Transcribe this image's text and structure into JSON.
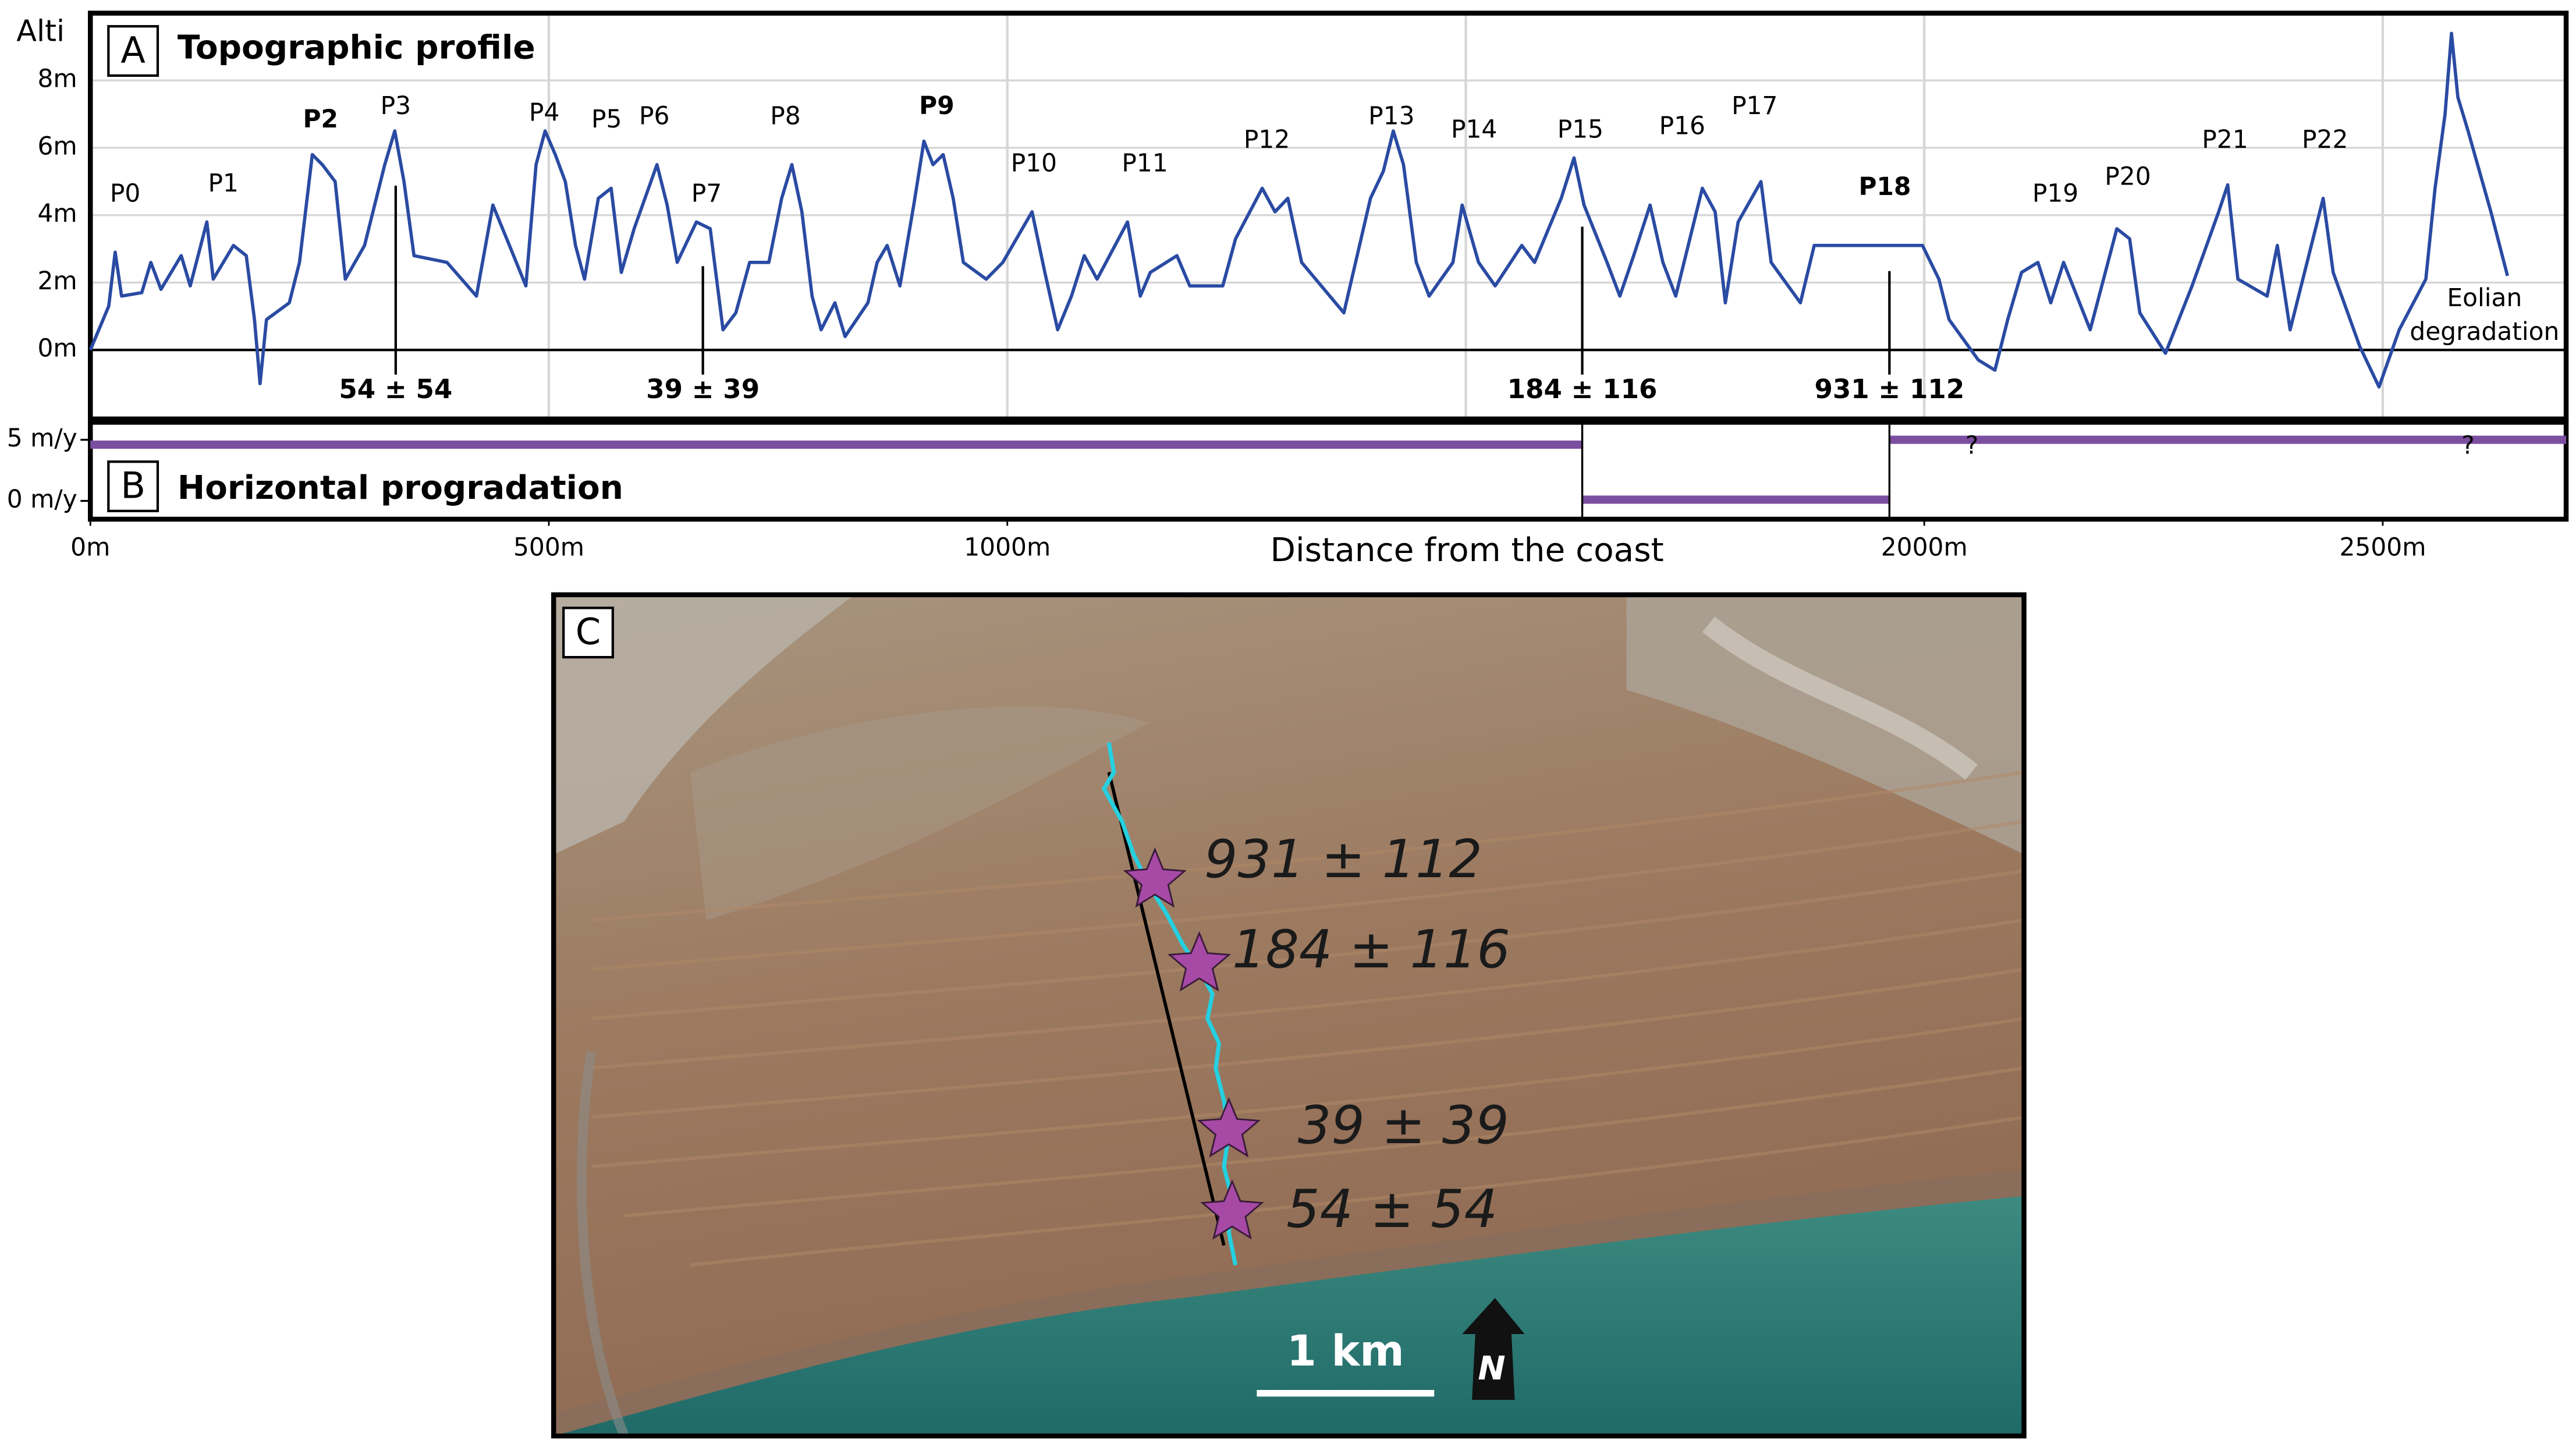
{
  "chart_data": [
    {
      "type": "line",
      "panel": "A",
      "title": "Topographic profile",
      "ylabel": "Alti",
      "xlim": [
        0,
        2700
      ],
      "ylim": [
        -2,
        9.9
      ],
      "yticks": [
        {
          "value": 0,
          "label": "0m"
        },
        {
          "value": 2,
          "label": "2m"
        },
        {
          "value": 4,
          "label": "4m"
        },
        {
          "value": 6,
          "label": "6m"
        },
        {
          "value": 8,
          "label": "8m"
        }
      ],
      "xgrid": [
        500,
        1000,
        1500,
        2000,
        2500
      ],
      "grid": true,
      "series": [
        {
          "color": "#2a4ba3",
          "x": [
            0,
            20,
            27,
            34,
            56,
            66,
            77,
            99,
            109,
            127,
            134,
            156,
            170,
            179,
            185,
            192,
            217,
            228,
            242,
            253,
            267,
            278,
            299,
            321,
            332,
            342,
            353,
            389,
            421,
            439,
            457,
            475,
            486,
            496,
            507,
            518,
            529,
            539,
            554,
            568,
            579,
            593,
            618,
            629,
            640,
            661,
            676,
            690,
            704,
            719,
            740,
            754,
            765,
            776,
            787,
            797,
            812,
            823,
            848,
            858,
            869,
            883,
            898,
            909,
            919,
            930,
            941,
            952,
            977,
            995,
            1027,
            1041,
            1055,
            1070,
            1084,
            1098,
            1131,
            1145,
            1156,
            1185,
            1199,
            1235,
            1249,
            1278,
            1292,
            1306,
            1321,
            1367,
            1396,
            1410,
            1421,
            1432,
            1446,
            1460,
            1486,
            1496,
            1514,
            1532,
            1561,
            1575,
            1604,
            1618,
            1629,
            1654,
            1668,
            1683,
            1701,
            1715,
            1729,
            1758,
            1772,
            1783,
            1797,
            1822,
            1833,
            1865,
            1880,
            1926,
            1962,
            1998,
            2016,
            2027,
            2059,
            2077,
            2091,
            2106,
            2124,
            2138,
            2152,
            2181,
            2210,
            2224,
            2235,
            2263,
            2292,
            2321,
            2331,
            2342,
            2374,
            2385,
            2399,
            2435,
            2446,
            2475,
            2496,
            2518,
            2547,
            2557,
            2568,
            2575,
            2582,
            2593,
            2618,
            2636
          ],
          "values": [
            0,
            1.3,
            2.9,
            1.6,
            1.7,
            2.6,
            1.8,
            2.8,
            1.9,
            3.8,
            2.1,
            3.1,
            2.8,
            0.9,
            -1,
            0.9,
            1.4,
            2.6,
            5.8,
            5.5,
            5,
            2.1,
            3.1,
            5.5,
            6.5,
            5,
            2.8,
            2.6,
            1.6,
            4.3,
            3.1,
            1.9,
            5.5,
            6.5,
            5.8,
            5,
            3.1,
            2.1,
            4.5,
            4.8,
            2.3,
            3.6,
            5.5,
            4.3,
            2.6,
            3.8,
            3.6,
            0.6,
            1.1,
            2.6,
            2.6,
            4.5,
            5.5,
            4.1,
            1.6,
            0.6,
            1.4,
            0.4,
            1.4,
            2.6,
            3.1,
            1.9,
            4.3,
            6.2,
            5.5,
            5.8,
            4.5,
            2.6,
            2.1,
            2.6,
            4.1,
            2.3,
            0.6,
            1.6,
            2.8,
            2.1,
            3.8,
            1.6,
            2.3,
            2.8,
            1.9,
            1.9,
            3.3,
            4.8,
            4.1,
            4.5,
            2.6,
            1.1,
            4.5,
            5.3,
            6.5,
            5.5,
            2.6,
            1.6,
            2.6,
            4.3,
            2.6,
            1.9,
            3.1,
            2.6,
            4.5,
            5.7,
            4.3,
            2.6,
            1.6,
            2.8,
            4.3,
            2.6,
            1.6,
            4.8,
            4.1,
            1.4,
            3.8,
            5,
            2.6,
            1.4,
            3.1,
            3.1,
            3.1,
            3.1,
            2.1,
            0.9,
            -0.3,
            -0.6,
            0.9,
            2.3,
            2.6,
            1.4,
            2.6,
            0.6,
            3.6,
            3.3,
            1.1,
            -0.1,
            1.9,
            4.1,
            4.9,
            2.1,
            1.6,
            3.1,
            0.6,
            4.5,
            2.3,
            0.1,
            -1.1,
            0.6,
            2.1,
            4.8,
            7,
            9.4,
            7.5,
            6.5,
            4.1,
            2.2
          ]
        }
      ],
      "annotations": [
        {
          "text": "P0",
          "x": 38,
          "y": 4.6
        },
        {
          "text": "P1",
          "x": 145,
          "y": 4.9
        },
        {
          "text": "P2",
          "x": 251,
          "y": 6.8,
          "bold": true
        },
        {
          "text": "P3",
          "x": 333,
          "y": 7.2
        },
        {
          "text": "P4",
          "x": 495,
          "y": 7
        },
        {
          "text": "P5",
          "x": 563,
          "y": 6.8
        },
        {
          "text": "P6",
          "x": 615,
          "y": 6.9
        },
        {
          "text": "P7",
          "x": 672,
          "y": 4.6
        },
        {
          "text": "P8",
          "x": 758,
          "y": 6.9
        },
        {
          "text": "P9",
          "x": 923,
          "y": 7.2,
          "bold": true
        },
        {
          "text": "P10",
          "x": 1029,
          "y": 5.5
        },
        {
          "text": "P11",
          "x": 1150,
          "y": 5.5
        },
        {
          "text": "P12",
          "x": 1283,
          "y": 6.2
        },
        {
          "text": "P13",
          "x": 1419,
          "y": 6.9
        },
        {
          "text": "P14",
          "x": 1509,
          "y": 6.5
        },
        {
          "text": "P15",
          "x": 1625,
          "y": 6.5
        },
        {
          "text": "P16",
          "x": 1736,
          "y": 6.6
        },
        {
          "text": "P17",
          "x": 1815,
          "y": 7.2
        },
        {
          "text": "P18",
          "x": 1957,
          "y": 4.8,
          "bold": true
        },
        {
          "text": "P19",
          "x": 2143,
          "y": 4.6
        },
        {
          "text": "P20",
          "x": 2222,
          "y": 5.1
        },
        {
          "text": "P21",
          "x": 2328,
          "y": 6.2
        },
        {
          "text": "P22",
          "x": 2437,
          "y": 6.2
        },
        {
          "text": "Eolian",
          "x": 2611,
          "y": 1.5
        },
        {
          "text": "degradation",
          "x": 2611,
          "y": 0.5
        }
      ],
      "samples": [
        {
          "label": "54 ± 54",
          "x": 333
        },
        {
          "label": "39 ± 39",
          "x": 668
        },
        {
          "label": "184 ± 116",
          "x": 1627
        },
        {
          "label": "931 ± 112",
          "x": 1962
        }
      ]
    },
    {
      "type": "step",
      "panel": "B",
      "title": "Horizontal progradation",
      "xlabel": "Distance from the coast",
      "xlim": [
        0,
        2700
      ],
      "ylim": [
        -1.5,
        6.3
      ],
      "yticks": [
        {
          "value": 5,
          "label": "5 m/y"
        },
        {
          "value": 0,
          "label": "0 m/y"
        }
      ],
      "xticks": [
        {
          "value": 0,
          "label": "0m"
        },
        {
          "value": 500,
          "label": "500m"
        },
        {
          "value": 1000,
          "label": "1000m"
        },
        {
          "value": 2000,
          "label": "2000m"
        },
        {
          "value": 2500,
          "label": "2500m"
        }
      ],
      "series": [
        {
          "color": "#7b4fa0",
          "x_edges": [
            0,
            1627,
            1962,
            2700
          ],
          "values": [
            4.6,
            0.1,
            5
          ]
        }
      ],
      "annotations": [
        {
          "text": "?",
          "x": 2052,
          "y": 4.4
        },
        {
          "text": "?",
          "x": 2593,
          "y": 4.4
        }
      ]
    }
  ],
  "map": {
    "panel": "C",
    "samples": [
      "931 ± 112",
      "184 ± 116",
      "39 ± 39",
      "54 ± 54"
    ],
    "scale_bar": "1 km",
    "north": "N"
  }
}
